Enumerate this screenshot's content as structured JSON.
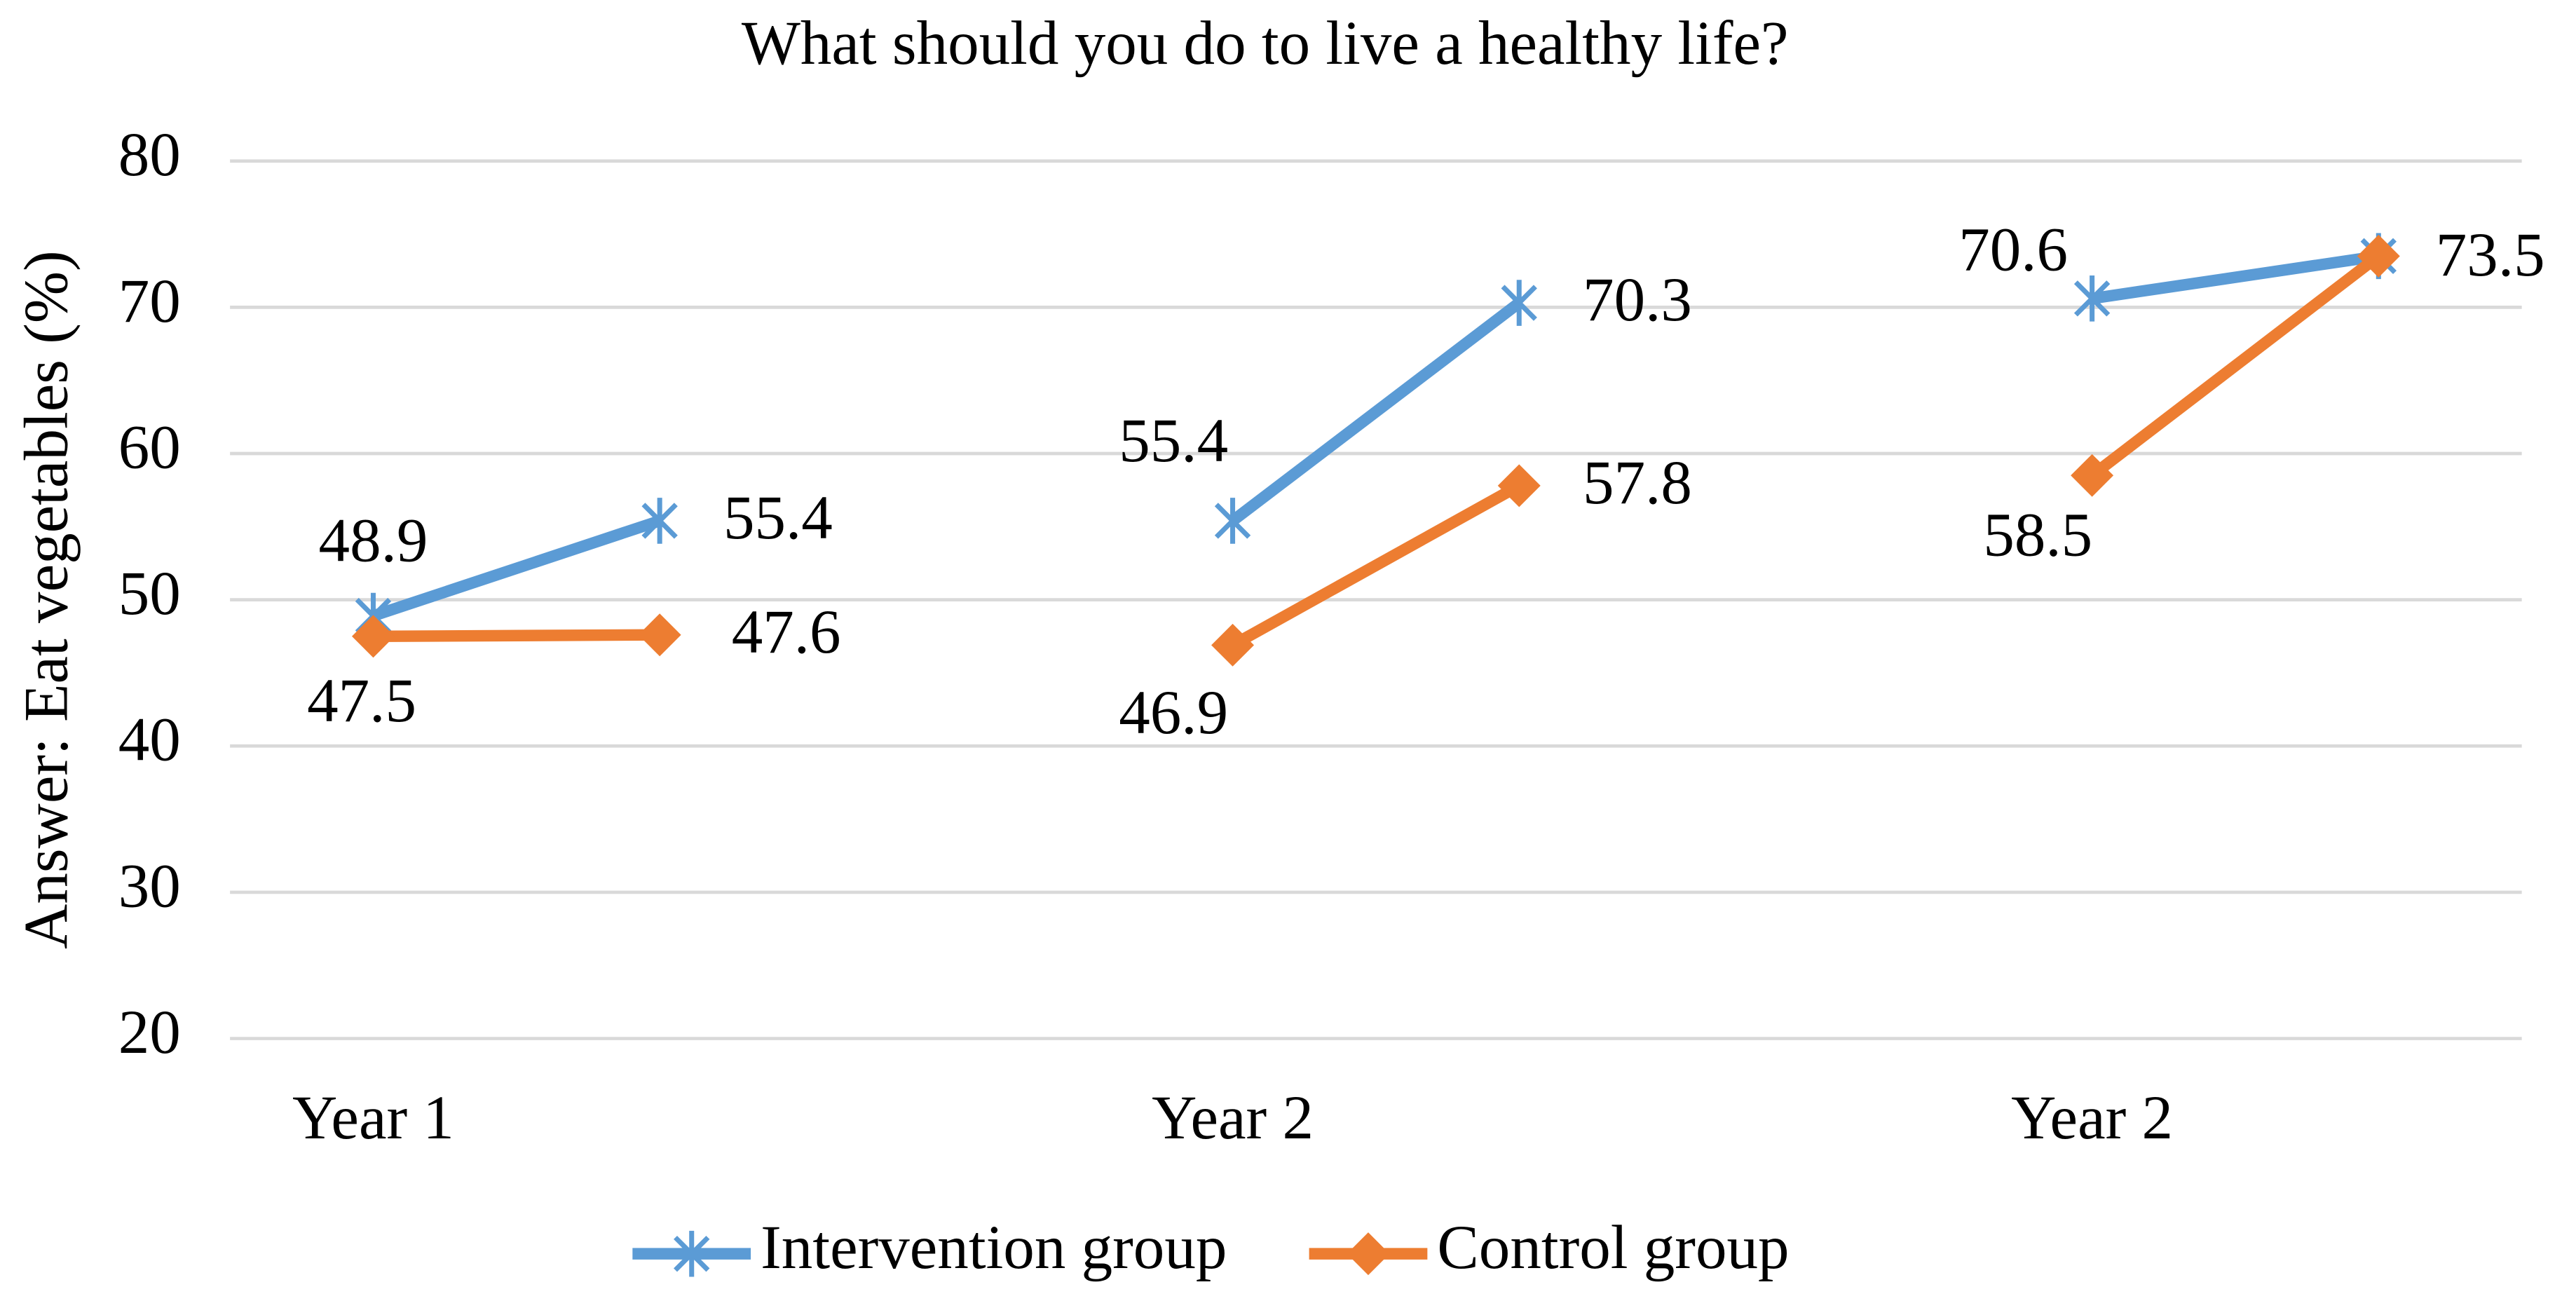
{
  "chart_data": {
    "type": "line",
    "title": "What should you do to live a healthy life?",
    "y_label": "Answer: Eat vegetables (%)",
    "categories": [
      "Year 1",
      null,
      null,
      "Year 2",
      null,
      null,
      "Year 2",
      null
    ],
    "series": [
      {
        "name": "Intervention group",
        "color": "#5b9bd5",
        "marker": "asterisk",
        "values": [
          48.9,
          55.4,
          null,
          55.4,
          70.3,
          null,
          70.6,
          73.5
        ]
      },
      {
        "name": "Control group",
        "color": "#ed7d31",
        "marker": "diamond",
        "values": [
          47.5,
          47.6,
          null,
          46.9,
          57.8,
          null,
          58.5,
          73.5
        ]
      }
    ],
    "ylim": [
      20,
      80
    ],
    "yticks": [
      20,
      30,
      40,
      50,
      60,
      70,
      80
    ],
    "grid": true,
    "legend": "bottom"
  }
}
